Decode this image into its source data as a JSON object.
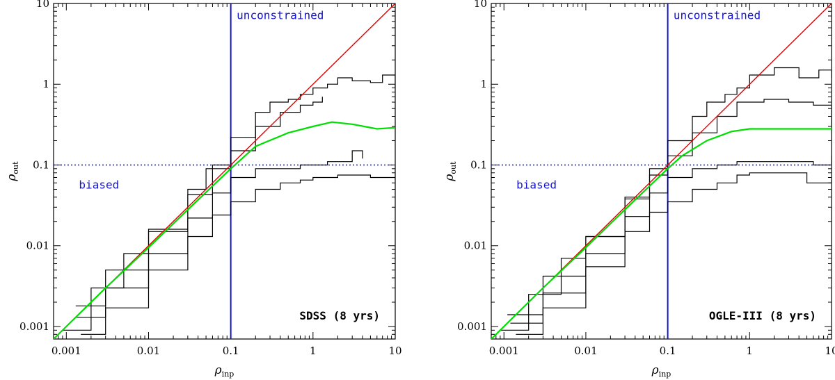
{
  "chart_data": [
    {
      "type": "line",
      "id": "sdss",
      "xscale": "log",
      "yscale": "log",
      "xlim": [
        0.0007,
        10
      ],
      "ylim": [
        0.0007,
        10
      ],
      "xlabel": "ρ",
      "xlabel_sub": "inp",
      "ylabel": "ρ",
      "ylabel_sub": "out",
      "xticks": [
        {
          "v": 0.001,
          "label": "0.001"
        },
        {
          "v": 0.01,
          "label": "0.01"
        },
        {
          "v": 0.1,
          "label": "0.1"
        },
        {
          "v": 1,
          "label": "1"
        },
        {
          "v": 10,
          "label": "10"
        }
      ],
      "yticks": [
        {
          "v": 0.001,
          "label": "0.001"
        },
        {
          "v": 0.01,
          "label": "0.01"
        },
        {
          "v": 0.1,
          "label": "0.1"
        },
        {
          "v": 1,
          "label": "1"
        },
        {
          "v": 10,
          "label": "10"
        }
      ],
      "survey_label": "SDSS (8 yrs)",
      "region_labels": {
        "upper": "unconstrained",
        "lower": "biased"
      },
      "threshold": 0.1,
      "series": [
        {
          "name": "identity",
          "color": "#e00000",
          "x": [
            0.0007,
            10
          ],
          "y": [
            0.0007,
            10
          ]
        },
        {
          "name": "median",
          "color": "#00dd00",
          "x": [
            0.0007,
            0.001,
            0.003,
            0.01,
            0.03,
            0.1,
            0.2,
            0.5,
            1,
            1.7,
            3,
            6,
            10
          ],
          "y": [
            0.0007,
            0.001,
            0.003,
            0.0095,
            0.028,
            0.09,
            0.17,
            0.25,
            0.3,
            0.34,
            0.32,
            0.28,
            0.29
          ]
        },
        {
          "name": "contour-outer-upper",
          "color": "#000000",
          "x": [
            0.0009,
            0.002,
            0.005,
            0.01,
            0.03,
            0.05,
            0.1,
            0.2,
            0.3,
            0.5,
            0.7,
            1,
            1.5,
            2,
            3,
            5,
            7,
            10
          ],
          "y": [
            0.0009,
            0.003,
            0.008,
            0.016,
            0.05,
            0.09,
            0.22,
            0.45,
            0.6,
            0.65,
            0.75,
            0.9,
            1.0,
            1.2,
            1.1,
            1.05,
            1.3,
            0.9
          ]
        },
        {
          "name": "contour-inner-upper",
          "color": "#000000",
          "x": [
            0.0013,
            0.003,
            0.01,
            0.03,
            0.06,
            0.1,
            0.2,
            0.4,
            0.7,
            1,
            1.3
          ],
          "y": [
            0.0018,
            0.005,
            0.015,
            0.043,
            0.1,
            0.15,
            0.3,
            0.45,
            0.55,
            0.6,
            0.7
          ]
        },
        {
          "name": "contour-inner-lower",
          "color": "#000000",
          "x": [
            0.0013,
            0.003,
            0.01,
            0.03,
            0.06,
            0.1,
            0.2,
            0.4,
            0.7,
            1.5,
            3,
            4
          ],
          "y": [
            0.0013,
            0.003,
            0.008,
            0.022,
            0.045,
            0.07,
            0.09,
            0.09,
            0.1,
            0.11,
            0.15,
            0.12
          ]
        },
        {
          "name": "contour-outer-lower",
          "color": "#000000",
          "x": [
            0.0015,
            0.003,
            0.01,
            0.03,
            0.06,
            0.1,
            0.2,
            0.4,
            0.7,
            1,
            2,
            5,
            10
          ],
          "y": [
            0.0008,
            0.0017,
            0.005,
            0.013,
            0.024,
            0.035,
            0.05,
            0.06,
            0.065,
            0.07,
            0.075,
            0.07,
            0.065
          ]
        }
      ]
    },
    {
      "type": "line",
      "id": "ogle",
      "xscale": "log",
      "yscale": "log",
      "xlim": [
        0.0007,
        10
      ],
      "ylim": [
        0.0007,
        10
      ],
      "xlabel": "ρ",
      "xlabel_sub": "inp",
      "ylabel": "ρ",
      "ylabel_sub": "out",
      "xticks": [
        {
          "v": 0.001,
          "label": "0.001"
        },
        {
          "v": 0.01,
          "label": "0.01"
        },
        {
          "v": 0.1,
          "label": "0.1"
        },
        {
          "v": 1,
          "label": "1"
        },
        {
          "v": 10,
          "label": "10"
        }
      ],
      "yticks": [
        {
          "v": 0.001,
          "label": "0.001"
        },
        {
          "v": 0.01,
          "label": "0.01"
        },
        {
          "v": 0.1,
          "label": "0.1"
        },
        {
          "v": 1,
          "label": "1"
        },
        {
          "v": 10,
          "label": "10"
        }
      ],
      "survey_label": "OGLE-III (8 yrs)",
      "region_labels": {
        "upper": "unconstrained",
        "lower": "biased"
      },
      "threshold": 0.1,
      "series": [
        {
          "name": "identity",
          "color": "#e00000",
          "x": [
            0.0007,
            10
          ],
          "y": [
            0.0007,
            10
          ]
        },
        {
          "name": "median",
          "color": "#00dd00",
          "x": [
            0.0007,
            0.001,
            0.003,
            0.01,
            0.03,
            0.1,
            0.15,
            0.3,
            0.6,
            1,
            2,
            4,
            10
          ],
          "y": [
            0.0007,
            0.001,
            0.003,
            0.0095,
            0.028,
            0.09,
            0.13,
            0.2,
            0.26,
            0.28,
            0.28,
            0.28,
            0.28
          ]
        },
        {
          "name": "contour-outer-upper",
          "color": "#000000",
          "x": [
            0.0009,
            0.002,
            0.005,
            0.01,
            0.03,
            0.06,
            0.1,
            0.2,
            0.3,
            0.5,
            0.7,
            1,
            2,
            4,
            7,
            10
          ],
          "y": [
            0.0009,
            0.0025,
            0.007,
            0.013,
            0.04,
            0.09,
            0.2,
            0.4,
            0.6,
            0.75,
            0.9,
            1.3,
            1.6,
            1.2,
            1.5,
            1.2
          ]
        },
        {
          "name": "contour-inner-upper",
          "color": "#000000",
          "x": [
            0.0011,
            0.003,
            0.01,
            0.03,
            0.06,
            0.1,
            0.2,
            0.4,
            0.7,
            1.5,
            3,
            6,
            10
          ],
          "y": [
            0.0014,
            0.0042,
            0.013,
            0.038,
            0.075,
            0.13,
            0.25,
            0.4,
            0.6,
            0.65,
            0.6,
            0.55,
            0.3
          ]
        },
        {
          "name": "contour-inner-lower",
          "color": "#000000",
          "x": [
            0.0012,
            0.003,
            0.01,
            0.03,
            0.06,
            0.1,
            0.2,
            0.4,
            0.7,
            1.5,
            3,
            6,
            10
          ],
          "y": [
            0.0011,
            0.0026,
            0.008,
            0.023,
            0.045,
            0.07,
            0.09,
            0.1,
            0.11,
            0.11,
            0.11,
            0.1,
            0.13
          ]
        },
        {
          "name": "contour-outer-lower",
          "color": "#000000",
          "x": [
            0.0014,
            0.003,
            0.01,
            0.03,
            0.06,
            0.1,
            0.2,
            0.4,
            0.7,
            1,
            2,
            5,
            10
          ],
          "y": [
            0.0008,
            0.0017,
            0.0055,
            0.015,
            0.026,
            0.035,
            0.05,
            0.06,
            0.075,
            0.08,
            0.08,
            0.06,
            0.065
          ]
        }
      ]
    }
  ]
}
